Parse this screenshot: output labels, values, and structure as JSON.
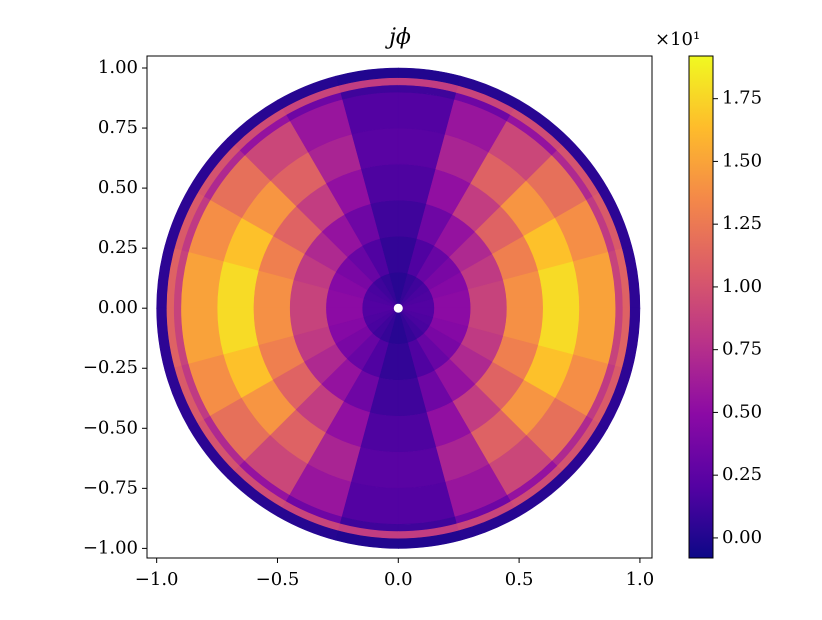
{
  "chart_data": {
    "type": "polar_heatmap",
    "title": "jϕ",
    "colorbar_offset_label": "×10¹",
    "colormap": "plasma",
    "r_edges": [
      0.02,
      0.15,
      0.3,
      0.45,
      0.6,
      0.75,
      0.9,
      0.93,
      0.96,
      1.0
    ],
    "theta_edges": [
      0,
      15,
      30,
      45,
      60,
      75,
      90,
      105,
      120,
      135,
      150,
      165,
      180
    ],
    "values": [
      [
        0.03,
        0.08,
        0.12,
        0.16,
        0.18,
        0.2,
        0.2,
        0.18,
        0.16,
        0.12,
        0.08,
        0.03
      ],
      [
        0.07,
        0.19,
        0.31,
        0.4,
        0.46,
        0.5,
        0.5,
        0.46,
        0.4,
        0.31,
        0.19,
        0.07
      ],
      [
        0.12,
        0.34,
        0.55,
        0.71,
        0.83,
        0.89,
        0.89,
        0.83,
        0.71,
        0.55,
        0.34,
        0.12
      ],
      [
        0.18,
        0.53,
        0.85,
        1.11,
        1.29,
        1.39,
        1.39,
        1.29,
        1.11,
        0.85,
        0.53,
        0.18
      ],
      [
        0.23,
        0.68,
        1.1,
        1.42,
        1.66,
        1.78,
        1.78,
        1.66,
        1.42,
        1.1,
        0.68,
        0.23
      ],
      [
        0.2,
        0.57,
        0.92,
        1.19,
        1.38,
        1.49,
        1.49,
        1.38,
        1.19,
        0.92,
        0.57,
        0.2
      ],
      [
        0.12,
        0.34,
        0.55,
        0.71,
        0.83,
        0.89,
        0.89,
        0.83,
        0.71,
        0.55,
        0.34,
        0.12
      ],
      [
        0.85,
        0.9,
        0.95,
        1.0,
        1.05,
        1.1,
        1.1,
        1.05,
        1.0,
        0.95,
        0.9,
        0.85
      ],
      [
        0.0,
        0.02,
        0.03,
        0.04,
        0.05,
        0.05,
        0.05,
        0.05,
        0.04,
        0.03,
        0.02,
        0.0
      ]
    ],
    "xlim": [
      -1.04,
      1.05
    ],
    "ylim": [
      -1.04,
      1.05
    ],
    "clim": [
      -0.08,
      1.92
    ],
    "xticks": [
      {
        "value": -1,
        "label": "−1.0"
      },
      {
        "value": -0.5,
        "label": "−0.5"
      },
      {
        "value": 0,
        "label": "0.0"
      },
      {
        "value": 0.5,
        "label": "0.5"
      },
      {
        "value": 1,
        "label": "1.0"
      }
    ],
    "yticks": [
      {
        "value": -1,
        "label": "−1.00"
      },
      {
        "value": -0.75,
        "label": "−0.75"
      },
      {
        "value": -0.5,
        "label": "−0.50"
      },
      {
        "value": -0.25,
        "label": "−0.25"
      },
      {
        "value": 0,
        "label": "0.00"
      },
      {
        "value": 0.25,
        "label": "0.25"
      },
      {
        "value": 0.5,
        "label": "0.50"
      },
      {
        "value": 0.75,
        "label": "0.75"
      },
      {
        "value": 1,
        "label": "1.00"
      }
    ],
    "cticks": [
      {
        "value": 0,
        "label": "0.00"
      },
      {
        "value": 0.25,
        "label": "0.25"
      },
      {
        "value": 0.5,
        "label": "0.50"
      },
      {
        "value": 0.75,
        "label": "0.75"
      },
      {
        "value": 1,
        "label": "1.00"
      },
      {
        "value": 1.25,
        "label": "1.25"
      },
      {
        "value": 1.5,
        "label": "1.50"
      },
      {
        "value": 1.75,
        "label": "1.75"
      }
    ]
  }
}
